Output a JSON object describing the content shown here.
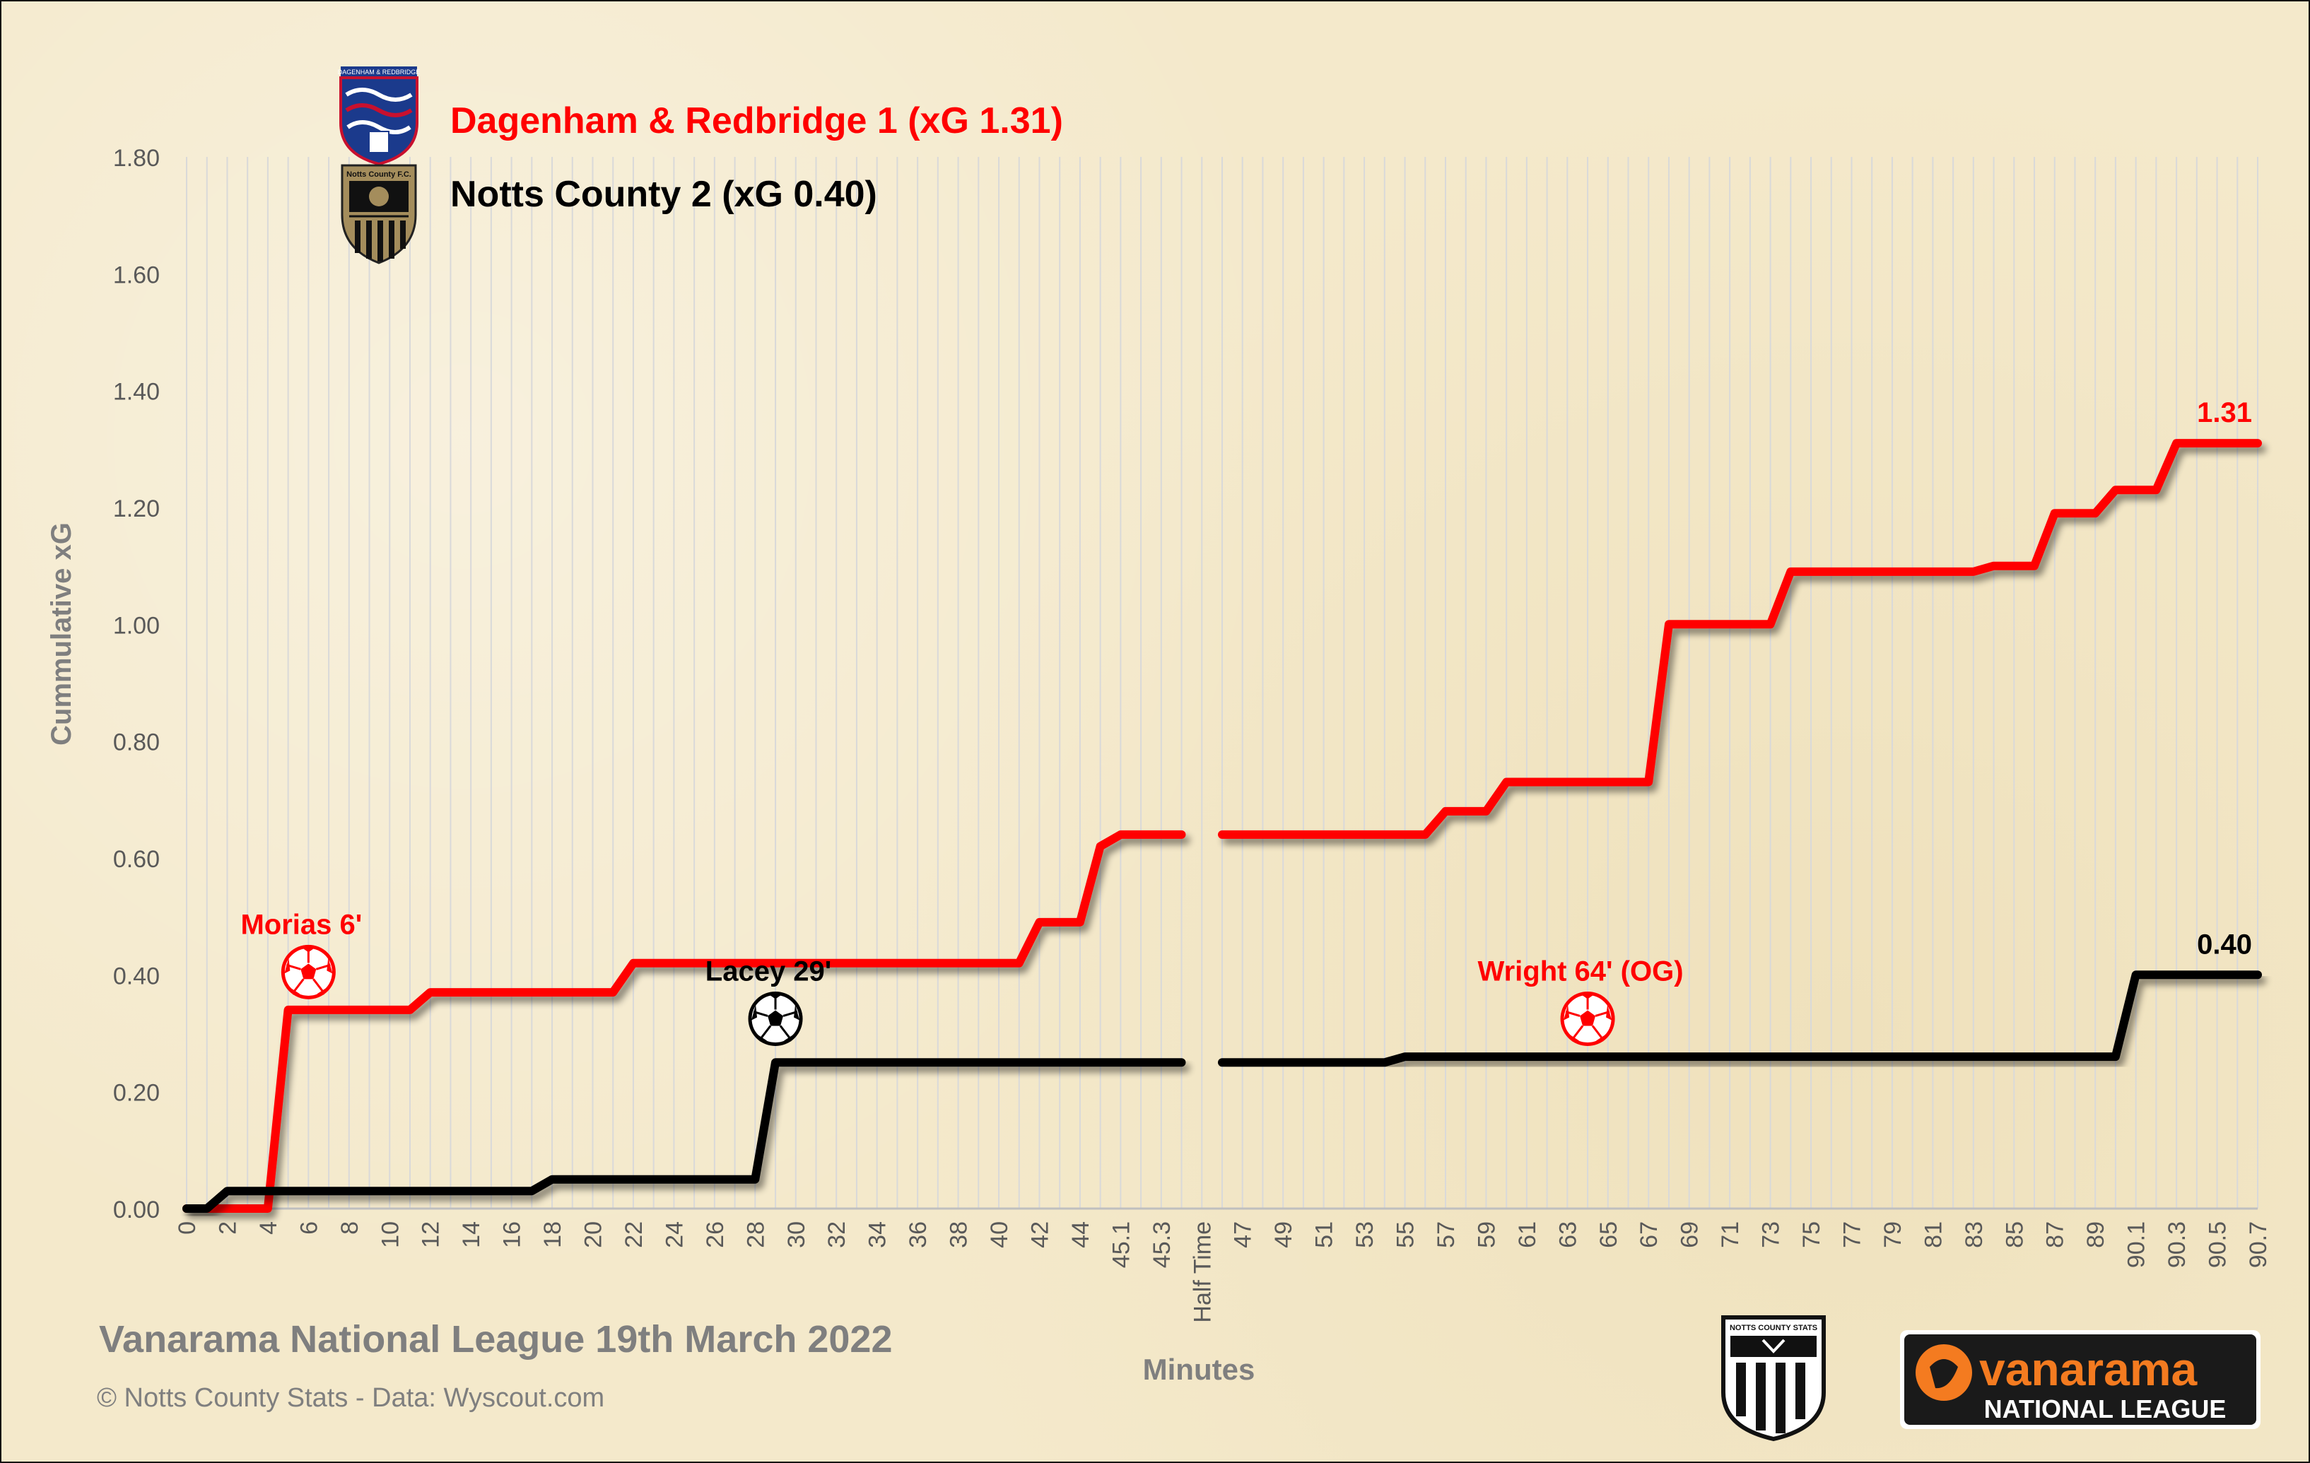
{
  "legend": {
    "home": "Dagenham & Redbridge 1 (xG 1.31)",
    "away": "Notts County 2 (xG 0.40)",
    "home_crest_text": "DAGENHAM & REDBRIDGE",
    "away_crest_text": "Notts County F.C."
  },
  "footer": {
    "subtitle": "Vanarama National League 19th March 2022",
    "credit": "© Notts County Stats - Data: Wyscout.com",
    "nc_logo_text": "NOTTS COUNTY STATS",
    "vanarama_top": "vanarama",
    "vanarama_bottom": "NATIONAL LEAGUE"
  },
  "colors": {
    "home": "#ff0000",
    "away": "#000000",
    "grid": "#d9d9d9",
    "axis_text": "#595959"
  },
  "icons": [
    "football-icon",
    "dagenham-crest-icon",
    "notts-county-crest-icon",
    "notts-county-stats-logo",
    "vanarama-logo"
  ],
  "chart_data": {
    "type": "line",
    "xlabel": "Minutes",
    "ylabel": "Cummulative  xG",
    "ylim": [
      0,
      1.8
    ],
    "yticks": [
      "0.00",
      "0.20",
      "0.40",
      "0.60",
      "0.80",
      "1.00",
      "1.20",
      "1.40",
      "1.60",
      "1.80"
    ],
    "grid": true,
    "legend_position": "top-left",
    "categories": [
      "0",
      "1",
      "2",
      "3",
      "4",
      "5",
      "6",
      "7",
      "8",
      "9",
      "10",
      "11",
      "12",
      "13",
      "14",
      "15",
      "16",
      "17",
      "18",
      "19",
      "20",
      "21",
      "22",
      "23",
      "24",
      "25",
      "26",
      "27",
      "28",
      "29",
      "30",
      "31",
      "32",
      "33",
      "34",
      "35",
      "36",
      "37",
      "38",
      "39",
      "40",
      "41",
      "42",
      "43",
      "44",
      "45",
      "45.1",
      "45.2",
      "45.3",
      "45.4",
      "Half Time",
      "46",
      "47",
      "48",
      "49",
      "50",
      "51",
      "52",
      "53",
      "54",
      "55",
      "56",
      "57",
      "58",
      "59",
      "60",
      "61",
      "62",
      "63",
      "64",
      "65",
      "66",
      "67",
      "68",
      "69",
      "70",
      "71",
      "72",
      "73",
      "74",
      "75",
      "76",
      "77",
      "78",
      "79",
      "80",
      "81",
      "82",
      "83",
      "84",
      "85",
      "86",
      "87",
      "88",
      "89",
      "90",
      "90.1",
      "90.2",
      "90.3",
      "90.4",
      "90.5",
      "90.6",
      "90.7"
    ],
    "tick_labels": [
      "0",
      "2",
      "4",
      "6",
      "8",
      "10",
      "12",
      "14",
      "16",
      "18",
      "20",
      "22",
      "24",
      "26",
      "28",
      "30",
      "32",
      "34",
      "36",
      "38",
      "40",
      "42",
      "44",
      "45.1",
      "45.3",
      "Half Time",
      "47",
      "49",
      "51",
      "53",
      "55",
      "57",
      "59",
      "61",
      "63",
      "65",
      "67",
      "69",
      "71",
      "73",
      "75",
      "77",
      "79",
      "81",
      "83",
      "85",
      "87",
      "89",
      "90.1",
      "90.3",
      "90.5",
      "90.7"
    ],
    "series": [
      {
        "name": "Dagenham & Redbridge",
        "values": [
          0,
          0,
          0,
          0,
          0,
          0.34,
          0.34,
          0.34,
          0.34,
          0.34,
          0.34,
          0.34,
          0.37,
          0.37,
          0.37,
          0.37,
          0.37,
          0.37,
          0.37,
          0.37,
          0.37,
          0.37,
          0.42,
          0.42,
          0.42,
          0.42,
          0.42,
          0.42,
          0.42,
          0.42,
          0.42,
          0.42,
          0.42,
          0.42,
          0.42,
          0.42,
          0.42,
          0.42,
          0.42,
          0.42,
          0.42,
          0.42,
          0.49,
          0.49,
          0.49,
          0.62,
          0.64,
          0.64,
          0.64,
          0.64,
          null,
          0.64,
          0.64,
          0.64,
          0.64,
          0.64,
          0.64,
          0.64,
          0.64,
          0.64,
          0.64,
          0.64,
          0.68,
          0.68,
          0.68,
          0.73,
          0.73,
          0.73,
          0.73,
          0.73,
          0.73,
          0.73,
          0.73,
          1.0,
          1.0,
          1.0,
          1.0,
          1.0,
          1.0,
          1.09,
          1.09,
          1.09,
          1.09,
          1.09,
          1.09,
          1.09,
          1.09,
          1.09,
          1.09,
          1.1,
          1.1,
          1.1,
          1.19,
          1.19,
          1.19,
          1.23,
          1.23,
          1.23,
          1.31,
          1.31,
          1.31,
          1.31,
          1.31
        ],
        "end_label": "1.31"
      },
      {
        "name": "Notts County",
        "values": [
          0,
          0,
          0.03,
          0.03,
          0.03,
          0.03,
          0.03,
          0.03,
          0.03,
          0.03,
          0.03,
          0.03,
          0.03,
          0.03,
          0.03,
          0.03,
          0.03,
          0.03,
          0.05,
          0.05,
          0.05,
          0.05,
          0.05,
          0.05,
          0.05,
          0.05,
          0.05,
          0.05,
          0.05,
          0.25,
          0.25,
          0.25,
          0.25,
          0.25,
          0.25,
          0.25,
          0.25,
          0.25,
          0.25,
          0.25,
          0.25,
          0.25,
          0.25,
          0.25,
          0.25,
          0.25,
          0.25,
          0.25,
          0.25,
          0.25,
          null,
          0.25,
          0.25,
          0.25,
          0.25,
          0.25,
          0.25,
          0.25,
          0.25,
          0.25,
          0.26,
          0.26,
          0.26,
          0.26,
          0.26,
          0.26,
          0.26,
          0.26,
          0.26,
          0.26,
          0.26,
          0.26,
          0.26,
          0.26,
          0.26,
          0.26,
          0.26,
          0.26,
          0.26,
          0.26,
          0.26,
          0.26,
          0.26,
          0.26,
          0.26,
          0.26,
          0.26,
          0.26,
          0.26,
          0.26,
          0.26,
          0.26,
          0.26,
          0.26,
          0.26,
          0.26,
          0.4,
          0.4,
          0.4,
          0.4,
          0.4,
          0.4,
          0.4
        ],
        "end_label": "0.40"
      }
    ],
    "annotations": [
      {
        "label": "Morias 6'",
        "category": "6",
        "y": 0.4,
        "team": "home"
      },
      {
        "label": "Lacey 29'",
        "category": "29",
        "y": 0.32,
        "team": "away"
      },
      {
        "label": "Wright 64' (OG)",
        "category": "64",
        "y": 0.32,
        "team": "home"
      }
    ]
  }
}
